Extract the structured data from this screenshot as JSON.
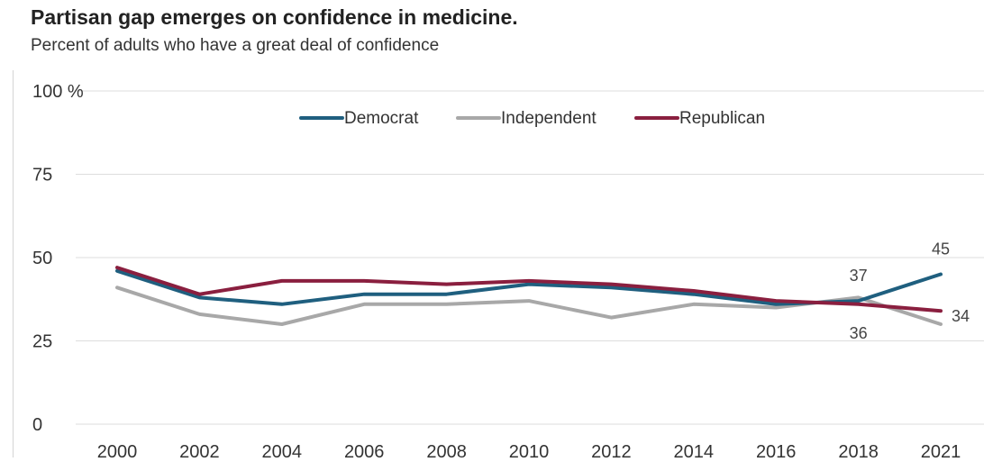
{
  "chart_data": {
    "type": "line",
    "title": "Partisan gap emerges on confidence in medicine.",
    "subtitle": "Percent of adults who have a great deal of confidence",
    "x": [
      "2000",
      "2002",
      "2004",
      "2006",
      "2008",
      "2010",
      "2012",
      "2014",
      "2016",
      "2018",
      "2021"
    ],
    "ylim": [
      0,
      100
    ],
    "yticks": [
      0,
      25,
      50,
      75,
      100
    ],
    "ytick_labels": [
      "0",
      "25",
      "50",
      "75",
      "100 %"
    ],
    "grid": true,
    "legend_position": "top-center",
    "series": [
      {
        "name": "Democrat",
        "color": "#1f5f7f",
        "values": [
          46,
          38,
          36,
          39,
          39,
          42,
          41,
          39,
          36,
          37,
          45
        ]
      },
      {
        "name": "Independent",
        "color": "#a8a8a8",
        "values": [
          41,
          33,
          30,
          36,
          36,
          37,
          32,
          36,
          35,
          38,
          30
        ]
      },
      {
        "name": "Republican",
        "color": "#8a1f3f",
        "values": [
          47,
          39,
          43,
          43,
          42,
          43,
          42,
          40,
          37,
          36,
          34
        ]
      }
    ],
    "data_labels": [
      {
        "series": "Democrat",
        "x": "2018",
        "text": "37"
      },
      {
        "series": "Democrat",
        "x": "2021",
        "text": "45"
      },
      {
        "series": "Republican",
        "x": "2018",
        "text": "36"
      },
      {
        "series": "Republican",
        "x": "2021",
        "text": "34"
      }
    ]
  }
}
